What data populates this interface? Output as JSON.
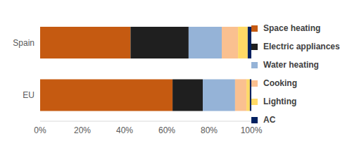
{
  "chart_data": {
    "type": "bar",
    "orientation": "horizontal",
    "stacked": true,
    "legend": "right",
    "grid": false,
    "categories": [
      "Spain",
      "EU"
    ],
    "series": [
      {
        "name": "Space heating",
        "color": "#c55a11",
        "values": [
          42.8,
          62.7
        ]
      },
      {
        "name": "Electric appliances",
        "color": "#1f1f1f",
        "values": [
          27.5,
          14.3
        ]
      },
      {
        "name": "Water heating",
        "color": "#95b3d7",
        "values": [
          15.7,
          15.3
        ]
      },
      {
        "name": "Cooking",
        "color": "#fac090",
        "values": [
          7.7,
          5.4
        ]
      },
      {
        "name": "Lighting",
        "color": "#ffd966",
        "values": [
          4.6,
          1.6
        ]
      },
      {
        "name": "AC",
        "color": "#002060",
        "values": [
          1.7,
          0.7
        ]
      }
    ],
    "xlim": [
      0,
      100
    ],
    "xticks": [
      {
        "value": 0,
        "label": "0%"
      },
      {
        "value": 20,
        "label": "20%"
      },
      {
        "value": 40,
        "label": "40%"
      },
      {
        "value": 60,
        "label": "60%"
      },
      {
        "value": 80,
        "label": "80%"
      },
      {
        "value": 100,
        "label": "100%"
      }
    ]
  }
}
